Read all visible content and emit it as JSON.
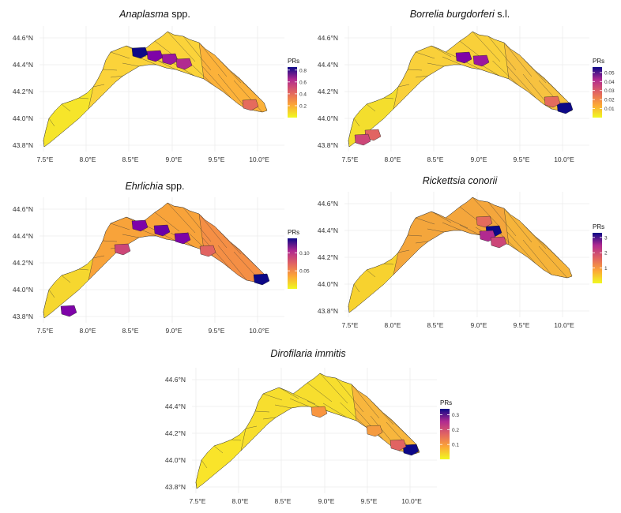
{
  "figure": {
    "panels": [
      {
        "id": "anaplasma",
        "title_italic": "Anaplasma",
        "title_plain": "spp.",
        "y_ticks": [
          "44.6°N",
          "44.4°N",
          "44.2°N",
          "44.0°N",
          "43.8°N"
        ],
        "x_ticks": [
          "7.5°E",
          "8.0°E",
          "8.5°E",
          "9.0°E",
          "9.5°E",
          "10.0°E"
        ],
        "legend": {
          "title": "PRs",
          "ticks": [
            "0.8",
            "0.6",
            "0.4",
            "0.2"
          ],
          "range": [
            0,
            0.85
          ]
        }
      },
      {
        "id": "borrelia",
        "title_italic": "Borrelia burgdorferi",
        "title_plain": "s.l.",
        "y_ticks": [
          "44.6°N",
          "44.4°N",
          "44.2°N",
          "44.0°N",
          "43.8°N"
        ],
        "x_ticks": [
          "7.5°E",
          "8.0°E",
          "8.5°E",
          "9.0°E",
          "9.5°E",
          "10.0°E"
        ],
        "legend": {
          "title": "PRs",
          "ticks": [
            "0.05",
            "0.04",
            "0.03",
            "0.02",
            "0.01"
          ],
          "range": [
            0,
            0.056
          ]
        }
      },
      {
        "id": "ehrlichia",
        "title_italic": "Ehrlichia",
        "title_plain": "spp.",
        "y_ticks": [
          "44.6°N",
          "44.4°N",
          "44.2°N",
          "44.0°N",
          "43.8°N"
        ],
        "x_ticks": [
          "7.5°E",
          "8.0°E",
          "8.5°E",
          "9.0°E",
          "9.5°E",
          "10.0°E"
        ],
        "legend": {
          "title": "PRs",
          "ticks": [
            "0.10",
            "0.05"
          ],
          "range": [
            0,
            0.14
          ]
        }
      },
      {
        "id": "rickettsia",
        "title_italic": "Rickettsia conorii",
        "title_plain": "",
        "y_ticks": [
          "44.6°N",
          "44.4°N",
          "44.2°N",
          "44.0°N",
          "43.8°N"
        ],
        "x_ticks": [
          "7.5°E",
          "8.0°E",
          "8.5°E",
          "9.0°E",
          "9.5°E",
          "10.0°E"
        ],
        "legend": {
          "title": "PRs",
          "ticks": [
            "3",
            "2",
            "1"
          ],
          "range": [
            0,
            3.3
          ]
        }
      },
      {
        "id": "dirofilaria",
        "title_italic": "Dirofilaria immitis",
        "title_plain": "",
        "y_ticks": [
          "44.6°N",
          "44.4°N",
          "44.2°N",
          "44.0°N",
          "43.8°N"
        ],
        "x_ticks": [
          "7.5°E",
          "8.0°E",
          "8.5°E",
          "9.0°E",
          "9.5°E",
          "10.0°E"
        ],
        "legend": {
          "title": "PRs",
          "ticks": [
            "0.3",
            "0.2",
            "0.1"
          ],
          "range": [
            0,
            0.34
          ]
        }
      }
    ],
    "colors": {
      "low": "#f0f921",
      "mid": "#f89540",
      "mid2": "#cc4778",
      "high": "#7e03a8",
      "max": "#0d0887"
    }
  }
}
